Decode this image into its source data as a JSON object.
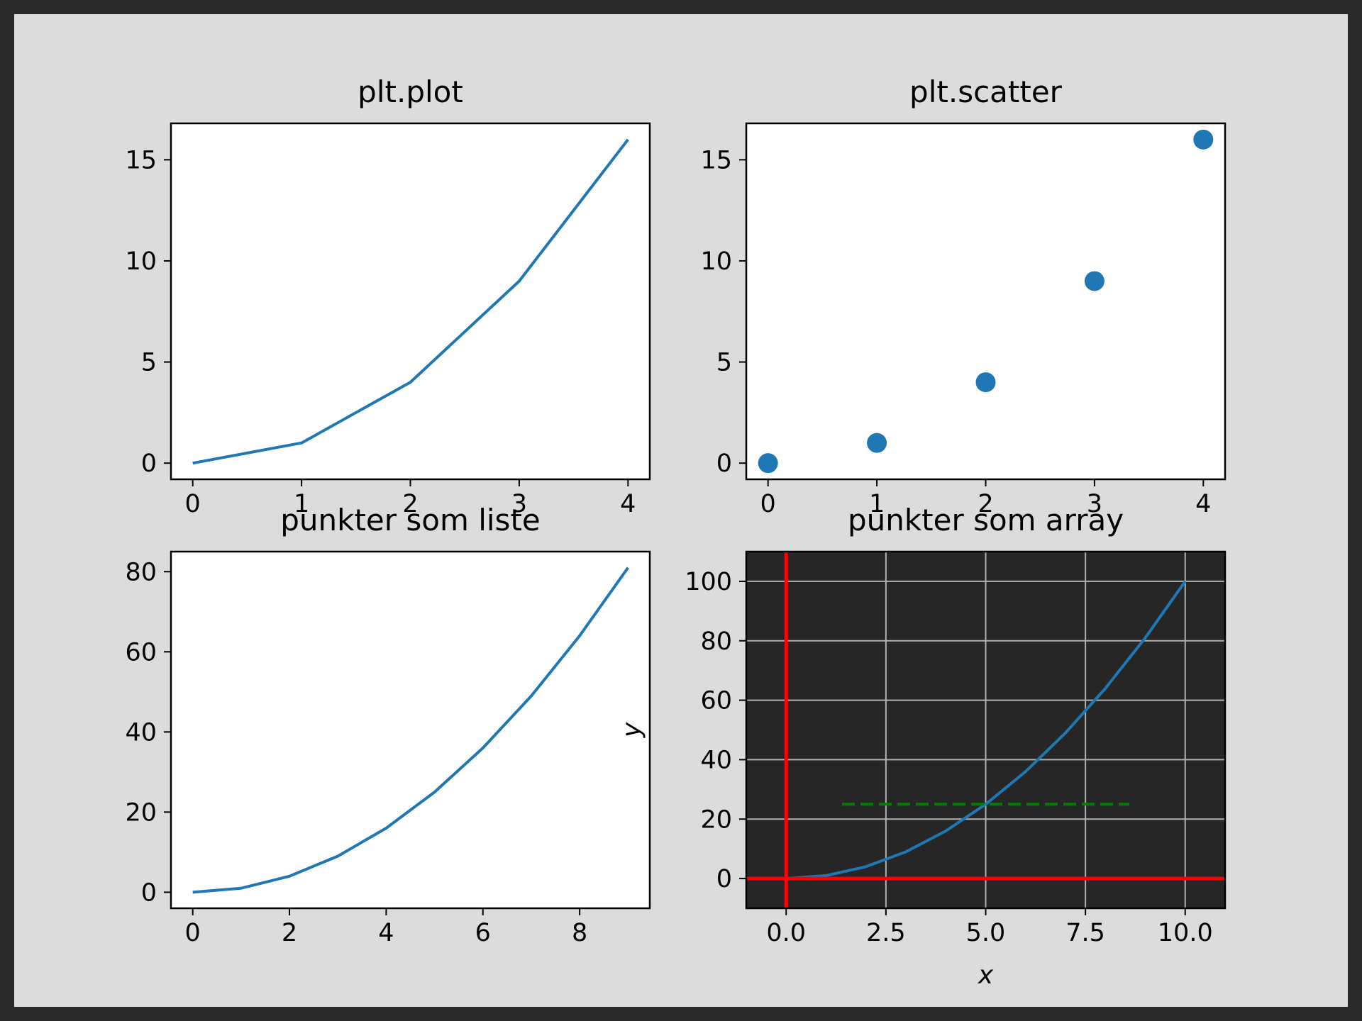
{
  "figure": {
    "background": "#dcdcdc",
    "frame_color": "#2a2a2a"
  },
  "chart_data": [
    {
      "type": "line",
      "title": "plt.plot",
      "x": [
        0,
        1,
        2,
        3,
        4
      ],
      "y": [
        0,
        1,
        4,
        9,
        16
      ],
      "xlim": [
        -0.2,
        4.2
      ],
      "ylim": [
        -0.8,
        16.8
      ],
      "xticks": [
        0,
        1,
        2,
        3,
        4
      ],
      "xtick_labels": [
        "0",
        "1",
        "2",
        "3",
        "4"
      ],
      "yticks": [
        0,
        5,
        10,
        15
      ],
      "ytick_labels": [
        "0",
        "5",
        "10",
        "15"
      ],
      "xlabel": "",
      "ylabel": "",
      "grid": false,
      "background": "#ffffff",
      "color": "#1f77b4"
    },
    {
      "type": "scatter",
      "title": "plt.scatter",
      "x": [
        0,
        1,
        2,
        3,
        4
      ],
      "y": [
        0,
        1,
        4,
        9,
        16
      ],
      "xlim": [
        -0.2,
        4.2
      ],
      "ylim": [
        -0.8,
        16.8
      ],
      "xticks": [
        0,
        1,
        2,
        3,
        4
      ],
      "xtick_labels": [
        "0",
        "1",
        "2",
        "3",
        "4"
      ],
      "yticks": [
        0,
        5,
        10,
        15
      ],
      "ytick_labels": [
        "0",
        "5",
        "10",
        "15"
      ],
      "xlabel": "",
      "ylabel": "",
      "grid": false,
      "background": "#ffffff",
      "color": "#1f77b4"
    },
    {
      "type": "line",
      "title": "punkter som liste",
      "x": [
        0,
        1,
        2,
        3,
        4,
        5,
        6,
        7,
        8,
        9
      ],
      "y": [
        0,
        1,
        4,
        9,
        16,
        25,
        36,
        49,
        64,
        81
      ],
      "xlim": [
        -0.45,
        9.45
      ],
      "ylim": [
        -4,
        85
      ],
      "xticks": [
        0,
        2,
        4,
        6,
        8
      ],
      "xtick_labels": [
        "0",
        "2",
        "4",
        "6",
        "8"
      ],
      "yticks": [
        0,
        20,
        40,
        60,
        80
      ],
      "ytick_labels": [
        "0",
        "20",
        "40",
        "60",
        "80"
      ],
      "xlabel": "",
      "ylabel": "",
      "grid": false,
      "background": "#ffffff",
      "color": "#1f77b4"
    },
    {
      "type": "line",
      "title": "punkter som array",
      "x": [
        0,
        1,
        2,
        3,
        4,
        5,
        6,
        7,
        8,
        9,
        10
      ],
      "y": [
        0,
        1,
        4,
        9,
        16,
        25,
        36,
        49,
        64,
        81,
        100
      ],
      "xlim": [
        -1,
        11
      ],
      "ylim": [
        -10,
        110
      ],
      "xticks": [
        0,
        2.5,
        5,
        7.5,
        10
      ],
      "xtick_labels": [
        "0.0",
        "2.5",
        "5.0",
        "7.5",
        "10.0"
      ],
      "yticks": [
        0,
        20,
        40,
        60,
        80,
        100
      ],
      "ytick_labels": [
        "0",
        "20",
        "40",
        "60",
        "80",
        "100"
      ],
      "xlabel": "x",
      "ylabel": "y",
      "grid": true,
      "background": "#262626",
      "color": "#1f77b4",
      "reference_lines": [
        {
          "orientation": "horizontal",
          "value": 0,
          "color": "#ff0000",
          "style": "solid"
        },
        {
          "orientation": "vertical",
          "value": 0,
          "color": "#ff0000",
          "style": "solid"
        },
        {
          "orientation": "horizontal",
          "value": 25,
          "xmin": 1.4,
          "xmax": 8.6,
          "color": "#008000",
          "style": "dashed"
        }
      ]
    }
  ]
}
